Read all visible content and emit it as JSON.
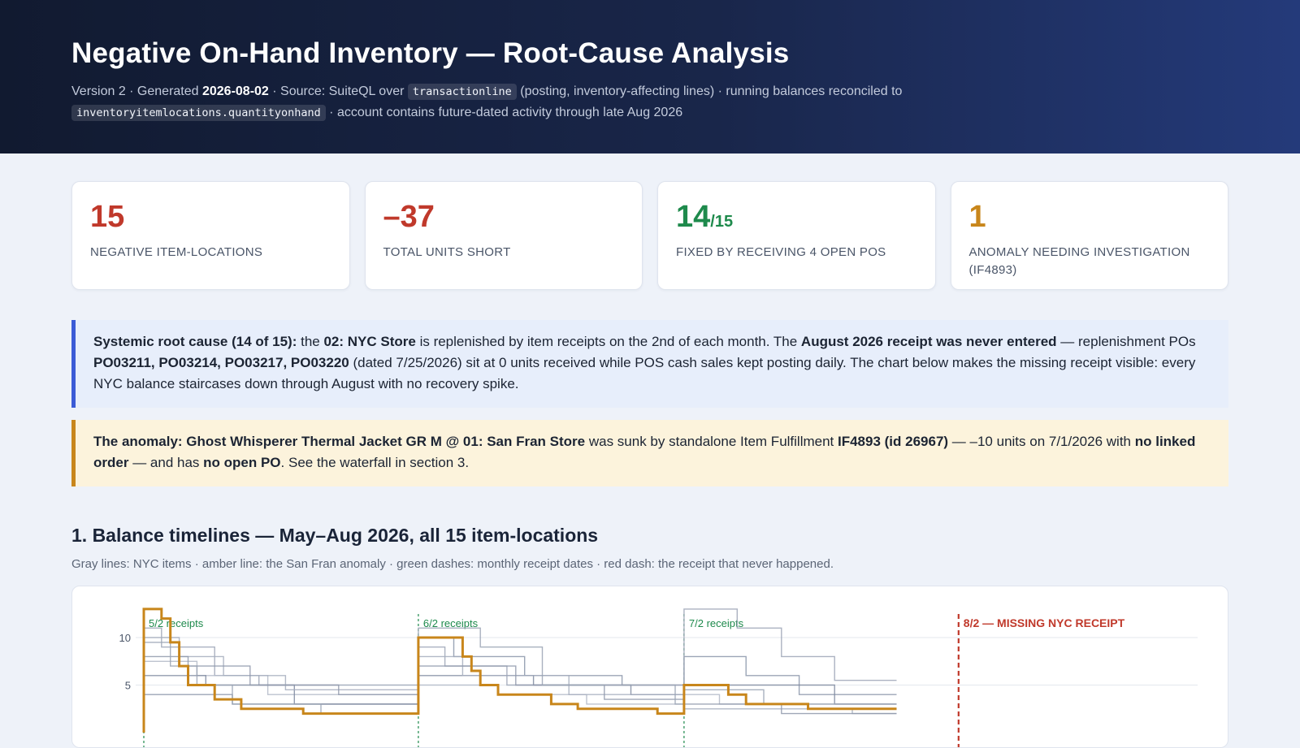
{
  "header": {
    "title": "Negative On-Hand Inventory — Root-Cause Analysis",
    "subtitle": {
      "part1": "Version 2 · Generated ",
      "date": "2026-08-02",
      "part2": " · Source: SuiteQL over ",
      "code1": "transactionline",
      "part3": " (posting, inventory-affecting lines) · running balances reconciled to",
      "code2": "inventoryitemlocations.quantityonhand",
      "part4": " · account contains future-dated activity through late Aug 2026"
    }
  },
  "kpis": [
    {
      "value": "15",
      "denominator": "",
      "label": "NEGATIVE ITEM-LOCATIONS",
      "color": "#c0392b"
    },
    {
      "value": "–37",
      "denominator": "",
      "label": "TOTAL UNITS SHORT",
      "color": "#c0392b"
    },
    {
      "value": "14",
      "denominator": "/15",
      "label": "FIXED BY RECEIVING 4 OPEN POS",
      "color": "#1e8a4c"
    },
    {
      "value": "1",
      "denominator": "",
      "label": "ANOMALY NEEDING INVESTIGATION (IF4893)",
      "color": "#c8861b"
    }
  ],
  "callouts": {
    "systemic": {
      "b1": "Systemic root cause (14 of 15):",
      "t1": " the ",
      "b2": "02: NYC Store",
      "t2": " is replenished by item receipts on the 2nd of each month. The ",
      "b3": "August 2026 receipt was never entered",
      "t3": " — replenishment POs ",
      "b4": "PO03211, PO03214, PO03217, PO03220",
      "t4": " (dated 7/25/2026) sit at 0 units received while POS cash sales kept posting daily. The chart below makes the missing receipt visible: every NYC balance staircases down through August with no recovery spike."
    },
    "anomaly": {
      "b1": "The anomaly: Ghost Whisperer Thermal Jacket GR M @ 01: San Fran Store",
      "t1": " was sunk by standalone Item Fulfillment ",
      "b2": "IF4893 (id 26967)",
      "t2": " — –10 units on 7/1/2026 with ",
      "b3": "no linked order",
      "t3": " — and has ",
      "b4": "no open PO",
      "t4": ". See the waterfall in section 3."
    }
  },
  "section1": {
    "title": "1. Balance timelines — May–Aug 2026, all 15 item-locations",
    "note": "Gray lines: NYC items · amber line: the San Fran anomaly · green dashes: monthly receipt dates · red dash: the receipt that never happened."
  },
  "chart_data": {
    "type": "line",
    "xlabel": "",
    "ylabel": "",
    "y_ticks": [
      5,
      10
    ],
    "x_start": "2026-05-02",
    "markers": [
      {
        "date": "2026-05-02",
        "label": "5/2 receipts",
        "kind": "receipt",
        "color": "#1e8a4c"
      },
      {
        "date": "2026-06-02",
        "label": "6/2 receipts",
        "kind": "receipt",
        "color": "#1e8a4c"
      },
      {
        "date": "2026-07-02",
        "label": "7/2 receipts",
        "kind": "receipt",
        "color": "#1e8a4c"
      },
      {
        "date": "2026-08-02",
        "label": "8/2 — MISSING NYC RECEIPT",
        "kind": "missing",
        "color": "#c0392b"
      }
    ],
    "series": [
      {
        "color": "#c8861b",
        "points": [
          [
            0,
            0
          ],
          [
            0,
            13
          ],
          [
            2,
            13
          ],
          [
            2,
            12
          ],
          [
            3,
            12
          ],
          [
            3,
            9.5
          ],
          [
            4,
            9.5
          ],
          [
            4,
            7
          ],
          [
            5,
            7
          ],
          [
            5,
            5
          ],
          [
            8,
            5
          ],
          [
            8,
            3.5
          ],
          [
            11,
            3.5
          ],
          [
            11,
            2.5
          ],
          [
            18,
            2.5
          ],
          [
            18,
            2
          ],
          [
            31,
            2
          ],
          [
            31,
            10
          ],
          [
            36,
            10
          ],
          [
            36,
            8
          ],
          [
            37,
            8
          ],
          [
            37,
            6.5
          ],
          [
            38,
            6.5
          ],
          [
            38,
            5
          ],
          [
            40,
            5
          ],
          [
            40,
            4
          ],
          [
            46,
            4
          ],
          [
            46,
            3
          ],
          [
            49,
            3
          ],
          [
            49,
            2.5
          ],
          [
            58,
            2.5
          ],
          [
            58,
            2
          ],
          [
            61,
            2
          ],
          [
            61,
            5
          ],
          [
            66,
            5
          ],
          [
            66,
            4
          ],
          [
            68,
            4
          ],
          [
            68,
            3
          ],
          [
            75,
            3
          ],
          [
            75,
            2.5
          ],
          [
            85,
            2.5
          ]
        ]
      },
      {
        "color": "#9aa3b4",
        "points": [
          [
            0,
            0
          ],
          [
            0,
            9.5
          ],
          [
            3,
            9.5
          ],
          [
            3,
            7
          ],
          [
            6,
            7
          ],
          [
            6,
            5
          ],
          [
            10,
            5
          ],
          [
            10,
            3
          ],
          [
            20,
            3
          ],
          [
            20,
            2
          ],
          [
            31,
            2
          ],
          [
            31,
            11
          ],
          [
            38,
            11
          ],
          [
            38,
            9
          ],
          [
            45,
            9
          ],
          [
            45,
            5
          ],
          [
            60,
            5
          ],
          [
            60,
            3
          ],
          [
            61,
            3
          ],
          [
            61,
            4.5
          ],
          [
            70,
            4.5
          ],
          [
            70,
            3
          ],
          [
            85,
            3
          ]
        ]
      },
      {
        "color": "#8f99ab",
        "points": [
          [
            0,
            0
          ],
          [
            0,
            8
          ],
          [
            5,
            8
          ],
          [
            5,
            7
          ],
          [
            12,
            7
          ],
          [
            12,
            5
          ],
          [
            22,
            5
          ],
          [
            22,
            4
          ],
          [
            31,
            4
          ],
          [
            31,
            7
          ],
          [
            42,
            7
          ],
          [
            42,
            5
          ],
          [
            52,
            5
          ],
          [
            52,
            3.5
          ],
          [
            61,
            3.5
          ],
          [
            61,
            3
          ],
          [
            72,
            3
          ],
          [
            72,
            2
          ],
          [
            85,
            2
          ]
        ]
      },
      {
        "color": "#a4adbd",
        "points": [
          [
            0,
            0
          ],
          [
            0,
            10
          ],
          [
            4,
            10
          ],
          [
            4,
            8
          ],
          [
            9,
            8
          ],
          [
            9,
            6
          ],
          [
            16,
            6
          ],
          [
            16,
            4.5
          ],
          [
            31,
            4.5
          ],
          [
            31,
            8
          ],
          [
            36,
            8
          ],
          [
            36,
            6
          ],
          [
            48,
            6
          ],
          [
            48,
            4
          ],
          [
            61,
            4
          ],
          [
            61,
            2.5
          ],
          [
            80,
            2.5
          ],
          [
            80,
            2
          ],
          [
            85,
            2
          ]
        ]
      },
      {
        "color": "#7f8aa0",
        "points": [
          [
            0,
            0
          ],
          [
            0,
            6
          ],
          [
            7,
            6
          ],
          [
            7,
            5
          ],
          [
            17,
            5
          ],
          [
            17,
            3
          ],
          [
            31,
            3
          ],
          [
            31,
            6
          ],
          [
            44,
            6
          ],
          [
            44,
            5
          ],
          [
            55,
            5
          ],
          [
            55,
            4
          ],
          [
            61,
            4
          ],
          [
            61,
            5
          ],
          [
            78,
            5
          ],
          [
            78,
            3
          ],
          [
            85,
            3
          ]
        ]
      },
      {
        "color": "#b2b9c7",
        "points": [
          [
            0,
            0
          ],
          [
            0,
            7.5
          ],
          [
            6,
            7.5
          ],
          [
            6,
            6
          ],
          [
            14,
            6
          ],
          [
            14,
            4
          ],
          [
            31,
            4
          ],
          [
            31,
            5
          ],
          [
            40,
            5
          ],
          [
            40,
            4
          ],
          [
            50,
            4
          ],
          [
            50,
            3
          ],
          [
            61,
            3
          ],
          [
            61,
            4
          ],
          [
            65,
            4
          ],
          [
            65,
            3
          ],
          [
            85,
            3
          ]
        ]
      },
      {
        "color": "#9ca5b6",
        "points": [
          [
            0,
            0
          ],
          [
            0,
            11
          ],
          [
            2,
            11
          ],
          [
            2,
            9
          ],
          [
            8,
            9
          ],
          [
            8,
            6
          ],
          [
            13,
            6
          ],
          [
            13,
            5
          ],
          [
            31,
            5
          ],
          [
            31,
            9
          ],
          [
            34,
            9
          ],
          [
            34,
            7
          ],
          [
            41,
            7
          ],
          [
            41,
            5
          ],
          [
            61,
            5
          ],
          [
            61,
            13
          ],
          [
            67,
            13
          ],
          [
            67,
            11
          ],
          [
            72,
            11
          ],
          [
            72,
            8
          ],
          [
            78,
            8
          ],
          [
            78,
            5.5
          ],
          [
            85,
            5.5
          ]
        ]
      },
      {
        "color": "#8a95a9",
        "points": [
          [
            0,
            0
          ],
          [
            0,
            4
          ],
          [
            10,
            4
          ],
          [
            10,
            3
          ],
          [
            31,
            3
          ],
          [
            31,
            10
          ],
          [
            35,
            10
          ],
          [
            35,
            8
          ],
          [
            43,
            8
          ],
          [
            43,
            6
          ],
          [
            54,
            6
          ],
          [
            54,
            5
          ],
          [
            61,
            5
          ],
          [
            61,
            8
          ],
          [
            68,
            8
          ],
          [
            68,
            6
          ],
          [
            74,
            6
          ],
          [
            74,
            4
          ],
          [
            85,
            4
          ]
        ]
      }
    ]
  }
}
